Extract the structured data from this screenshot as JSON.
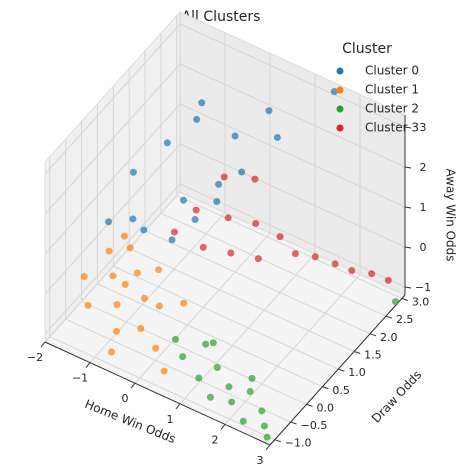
{
  "chart_data": {
    "type": "scatter3d",
    "title": "All Clusters",
    "xlabel": "Home Win Odds",
    "ylabel": "Draw Odds",
    "zlabel": "Away Win Odds",
    "xlim": [
      -2,
      3
    ],
    "ylim": [
      -1.15,
      3.1
    ],
    "zlim": [
      -1.2,
      3.3
    ],
    "xticks": [
      {
        "value": -2,
        "label": "−2"
      },
      {
        "value": -1,
        "label": "−1"
      },
      0,
      1,
      2,
      3
    ],
    "yticks": [
      {
        "value": -1,
        "label": "−1.0"
      },
      {
        "value": -0.5,
        "label": "−0.5"
      },
      {
        "value": 0,
        "label": "0.0"
      },
      0.5,
      {
        "value": 1,
        "label": "1.0"
      },
      1.5,
      {
        "value": 2,
        "label": "2.0"
      },
      2.5,
      {
        "value": 3,
        "label": "3.0"
      }
    ],
    "zticks": [
      {
        "value": -1,
        "label": "−1"
      },
      0,
      1,
      2,
      3
    ],
    "grid": true,
    "legend_title": "Cluster",
    "legend": "upper right",
    "series": [
      {
        "name": "Cluster 0",
        "color": "#1f77b4",
        "x": [
          -1.2,
          -0.8,
          -0.5,
          -0.3,
          0,
          0.2,
          0.4,
          -1,
          -0.6,
          0.1,
          0.5,
          0.8,
          -0.2,
          0.3,
          1.5,
          -1.4,
          -0.9
        ],
        "y": [
          0.5,
          1,
          1.5,
          0.8,
          2,
          1.2,
          2.5,
          0.2,
          1.8,
          0.6,
          1.5,
          2.2,
          0.3,
          1,
          3,
          0,
          0.4
        ],
        "z": [
          2,
          2.5,
          2.8,
          1.5,
          2.2,
          1.8,
          2.6,
          1.2,
          2.9,
          1.4,
          2,
          2.4,
          1,
          1.6,
          3.2,
          1.1,
          0.8
        ]
      },
      {
        "name": "Cluster 1",
        "color": "#ff7f0e",
        "x": [
          -1.8,
          -1.6,
          -1.5,
          -1.3,
          -1.2,
          -1,
          -0.9,
          -0.8,
          -0.6,
          -0.5,
          -0.4,
          -0.2,
          0,
          0.2,
          0.4,
          -1.4,
          -0.7,
          -1.1
        ],
        "y": [
          -0.2,
          0.3,
          -0.5,
          0,
          0.4,
          -0.3,
          0.2,
          -0.6,
          0,
          0.3,
          -0.4,
          -0.1,
          -0.5,
          0.1,
          -0.8,
          0.5,
          -0.9,
          0.1
        ],
        "z": [
          -0.3,
          0,
          -0.6,
          -0.2,
          0.2,
          -0.5,
          -0.1,
          -0.8,
          -0.4,
          0.1,
          -0.7,
          -0.3,
          -0.9,
          -0.2,
          -1,
          0.3,
          -1,
          -0.4
        ]
      },
      {
        "name": "Cluster 2",
        "color": "#2ca02c",
        "x": [
          0.3,
          0.6,
          0.9,
          1.1,
          1.3,
          1.5,
          1.7,
          1.9,
          2.1,
          2.3,
          2.5,
          2.7,
          2.9,
          1,
          2,
          3
        ],
        "y": [
          -0.3,
          -0.5,
          -0.2,
          -0.7,
          -0.4,
          -0.9,
          -0.6,
          -0.8,
          -0.5,
          -1,
          -0.7,
          -0.9,
          -1.1,
          -0.1,
          -0.3,
          2.8
        ],
        "z": [
          -0.7,
          -0.8,
          -0.6,
          -0.9,
          -0.8,
          -1,
          -0.9,
          -1,
          -0.9,
          -1.1,
          -1,
          -1.1,
          -1.1,
          -0.6,
          -0.8,
          -1.1
        ]
      },
      {
        "name": "Cluster 3",
        "color": "#d62728",
        "x": [
          -0.5,
          -0.3,
          0,
          0.2,
          0.4,
          0.6,
          0.8,
          1,
          1.2,
          1.5,
          1.8,
          2.1,
          2.4,
          2.7,
          0.3,
          -0.1
        ],
        "y": [
          0.8,
          1.2,
          1,
          1.5,
          1.3,
          1.8,
          1.6,
          2,
          2.2,
          2.4,
          2.6,
          2.7,
          2.9,
          3,
          2.2,
          1.8
        ],
        "z": [
          0.6,
          0.9,
          0.3,
          0.7,
          0.1,
          0.5,
          -0.1,
          0.2,
          -0.3,
          -0.4,
          -0.6,
          -0.7,
          -0.8,
          -0.9,
          1.1,
          1.3
        ]
      }
    ]
  }
}
